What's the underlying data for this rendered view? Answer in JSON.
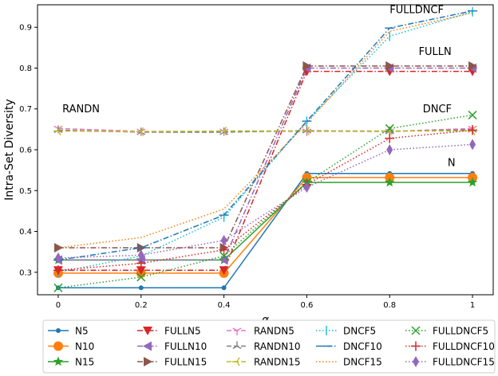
{
  "chart_data": {
    "type": "line",
    "title": "",
    "xlabel": "α",
    "ylabel": "Intra-Set Diversity",
    "x": [
      0,
      0.2,
      0.4,
      0.6,
      0.8,
      1
    ],
    "x_ticks": [
      "0",
      "0.2",
      "0.4",
      "0.6",
      "0.8",
      "1"
    ],
    "y_ticks": [
      "0.3",
      "0.4",
      "0.5",
      "0.6",
      "0.7",
      "0.8",
      "0.9"
    ],
    "ylim": [
      0.245,
      0.955
    ],
    "grid": false,
    "legend_placement": "bottom",
    "annotations": [
      {
        "text": "FULLDNCF",
        "x": 0.8,
        "y": 0.935
      },
      {
        "text": "FULLN",
        "x": 0.87,
        "y": 0.832
      },
      {
        "text": "RANDN",
        "x": 0.01,
        "y": 0.692
      },
      {
        "text": "DNCF",
        "x": 0.88,
        "y": 0.692
      },
      {
        "text": "N",
        "x": 0.94,
        "y": 0.56
      }
    ],
    "series": [
      {
        "name": "N5",
        "color": "#1f77b4",
        "dash": "solid",
        "marker": "circle-small",
        "values": [
          0.262,
          0.262,
          0.262,
          0.542,
          0.542,
          0.542
        ]
      },
      {
        "name": "N10",
        "color": "#ff7f0e",
        "dash": "solid",
        "marker": "circle",
        "values": [
          0.298,
          0.298,
          0.298,
          0.532,
          0.532,
          0.532
        ]
      },
      {
        "name": "N15",
        "color": "#2ca02c",
        "dash": "solid",
        "marker": "star",
        "values": [
          0.33,
          0.33,
          0.33,
          0.52,
          0.52,
          0.52
        ]
      },
      {
        "name": "FULLN5",
        "color": "#d62728",
        "dash": "dashdot",
        "marker": "triangle-down",
        "values": [
          0.305,
          0.305,
          0.305,
          0.792,
          0.792,
          0.792
        ]
      },
      {
        "name": "FULLN10",
        "color": "#9467bd",
        "dash": "dashdot",
        "marker": "triangle-left",
        "values": [
          0.33,
          0.33,
          0.33,
          0.8,
          0.8,
          0.8
        ]
      },
      {
        "name": "FULLN15",
        "color": "#8c564b",
        "dash": "dashdot",
        "marker": "triangle-right",
        "values": [
          0.36,
          0.36,
          0.36,
          0.805,
          0.805,
          0.805
        ]
      },
      {
        "name": "RANDN5",
        "color": "#e377c2",
        "dash": "dashed",
        "marker": "tri-down",
        "values": [
          0.652,
          0.645,
          0.645,
          0.645,
          0.645,
          0.652
        ]
      },
      {
        "name": "RANDN10",
        "color": "#7f7f7f",
        "dash": "dashed",
        "marker": "tri-up",
        "values": [
          0.648,
          0.643,
          0.643,
          0.647,
          0.645,
          0.649
        ]
      },
      {
        "name": "RANDN15",
        "color": "#bcbd22",
        "dash": "dashed",
        "marker": "tri-left",
        "values": [
          0.646,
          0.644,
          0.646,
          0.646,
          0.646,
          0.646
        ]
      },
      {
        "name": "DNCF5",
        "color": "#17becf",
        "dash": "dotted",
        "marker": "vline",
        "values": [
          0.3,
          0.34,
          0.435,
          0.67,
          0.878,
          0.938
        ]
      },
      {
        "name": "DNCF10",
        "color": "#1f77b4",
        "dash": "dashdot",
        "marker": "hline",
        "values": [
          0.33,
          0.36,
          0.44,
          0.67,
          0.898,
          0.94
        ]
      },
      {
        "name": "DNCF15",
        "color": "#ff7f0e",
        "dash": "dotted",
        "marker": "none",
        "values": [
          0.36,
          0.385,
          0.455,
          0.665,
          0.89,
          0.935
        ]
      },
      {
        "name": "FULLDNCF5",
        "color": "#2ca02c",
        "dash": "dotted",
        "marker": "x",
        "values": [
          0.262,
          0.288,
          0.34,
          0.52,
          0.652,
          0.685
        ]
      },
      {
        "name": "FULLDNCF10",
        "color": "#d62728",
        "dash": "dotted",
        "marker": "plus",
        "values": [
          0.305,
          0.322,
          0.355,
          0.515,
          0.628,
          0.648
        ]
      },
      {
        "name": "FULLDNCF15",
        "color": "#9467bd",
        "dash": "dotted",
        "marker": "thin-diamond",
        "values": [
          0.335,
          0.342,
          0.378,
          0.508,
          0.6,
          0.613
        ]
      }
    ]
  }
}
